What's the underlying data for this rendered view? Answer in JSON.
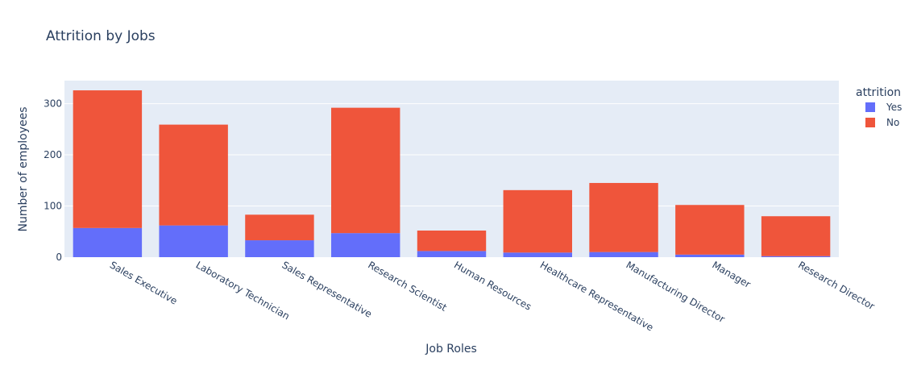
{
  "chart_data": {
    "type": "bar",
    "barmode": "stack",
    "title": "Attrition by Jobs",
    "xlabel": "Job Roles",
    "ylabel": "Number of employees",
    "categories": [
      "Sales Executive",
      "Laboratory Technician",
      "Sales Representative",
      "Research Scientist",
      "Human Resources",
      "Healthcare Representative",
      "Manufacturing Director",
      "Manager",
      "Research Director"
    ],
    "series": [
      {
        "name": "Yes",
        "color": "#636efa",
        "values": [
          57,
          62,
          33,
          47,
          12,
          9,
          10,
          5,
          2
        ]
      },
      {
        "name": "No",
        "color": "#ef553b",
        "values": [
          269,
          197,
          50,
          245,
          40,
          122,
          135,
          97,
          78
        ]
      }
    ],
    "ylim": [
      0,
      345
    ],
    "yticks": [
      0,
      100,
      200,
      300
    ],
    "grid": true,
    "legend": {
      "title": "attrition",
      "placement": "top-right"
    },
    "plot_background": "#e5ecf6"
  }
}
